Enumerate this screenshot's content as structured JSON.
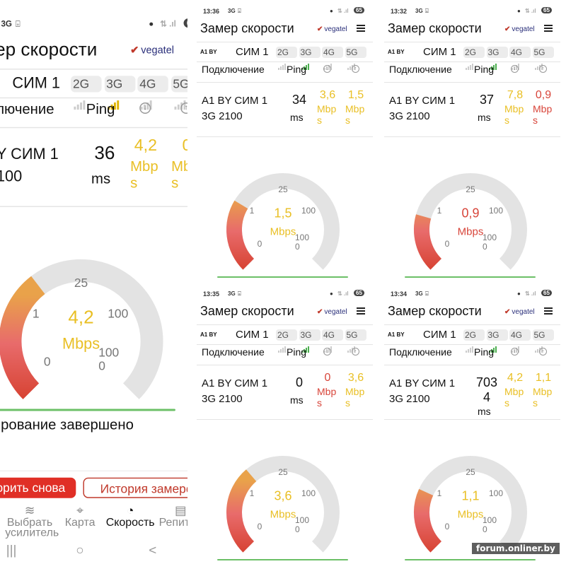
{
  "app": {
    "title": "Замер скорости",
    "brand": "vegatel",
    "operator": "A1 BY",
    "sim": "СИМ 1",
    "tech": [
      "2G",
      "3G",
      "4G",
      "5G"
    ],
    "active_tech": "3G",
    "status_net": "3G",
    "battery": "65",
    "headers": {
      "connection": "Подключение",
      "ping": "Ping",
      "download_icon": "arrow-down-circle-icon",
      "upload_icon": "arrow-up-circle-icon"
    },
    "connection_name": "A1 BY СИМ 1",
    "band": "3G 2100",
    "ping_unit": "ms",
    "speed_unit": "Mbps",
    "gauge_ticks": [
      "0",
      "1",
      "25",
      "100",
      "1000"
    ],
    "status_text": "Тестирование завершено",
    "buttons": {
      "retry": "Повторить снова",
      "history": "История замеров"
    },
    "nav": [
      {
        "label": "Выбрать усилитель",
        "icon": "signal-wave-icon"
      },
      {
        "label": "Карта",
        "icon": "map-pin-icon"
      },
      {
        "label": "Скорость",
        "icon": "speedometer-icon",
        "active": true
      },
      {
        "label": "Репитер",
        "icon": "repeater-icon"
      }
    ],
    "system_nav": {
      "recents": "|||",
      "home": "○",
      "back": "<"
    }
  },
  "colors": {
    "good": "#e9bf24",
    "bad": "#d8453a",
    "progress": "#6cc067",
    "gauge_track": "#e3e3e3",
    "signal_active_green": "#4caf50",
    "signal_active_yellow": "#e0b400",
    "brand_red": "#e02f26"
  },
  "panels": [
    {
      "time": "",
      "ping": "36",
      "download": "4,2",
      "download_color": "good",
      "upload": "0",
      "upload_color": "good",
      "gauge_value": "4,2",
      "gauge_color": "good",
      "signal_color": "signal_active_yellow"
    },
    {
      "time": "13:36",
      "ping": "34",
      "download": "3,6",
      "download_color": "good",
      "upload": "1,5",
      "upload_color": "good",
      "gauge_value": "1,5",
      "gauge_color": "good",
      "signal_color": "signal_active_green"
    },
    {
      "time": "13:32",
      "ping": "37",
      "download": "7,8",
      "download_color": "good",
      "upload": "0,9",
      "upload_color": "bad",
      "gauge_value": "0,9",
      "gauge_color": "bad",
      "signal_color": "signal_active_green"
    },
    {
      "time": "13:35",
      "ping": "0",
      "download": "0",
      "download_color": "bad",
      "upload": "3,6",
      "upload_color": "good",
      "gauge_value": "3,6",
      "gauge_color": "good",
      "signal_color": "signal_active_green"
    },
    {
      "time": "13:34",
      "ping": "7034",
      "download": "4,2",
      "download_color": "good",
      "upload": "1,1",
      "upload_color": "good",
      "gauge_value": "1,1",
      "gauge_color": "good",
      "signal_color": "signal_active_green"
    }
  ],
  "watermark": "forum.onliner.by"
}
